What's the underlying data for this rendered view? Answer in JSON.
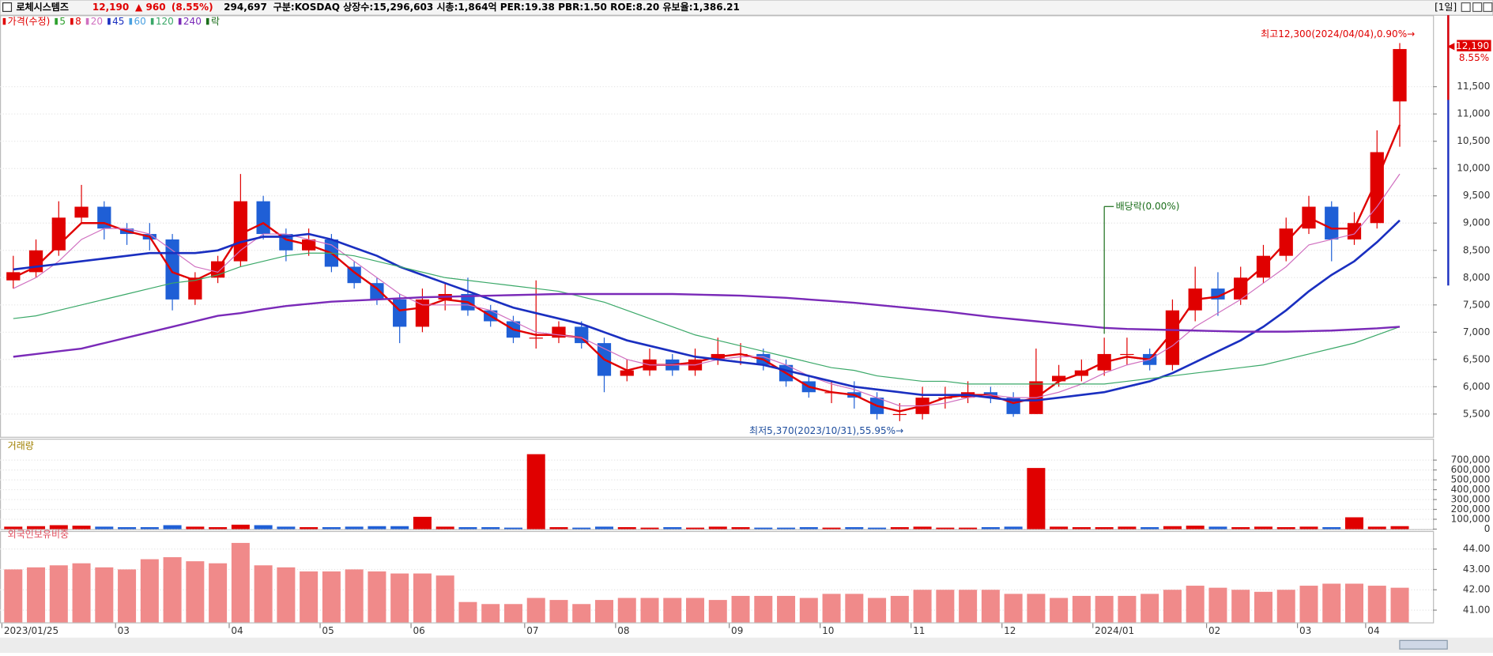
{
  "header": {
    "name": "로체시스템즈",
    "price": "12,190",
    "change": "▲ 960",
    "rate": "(8.55%)",
    "volume": "294,697",
    "info": "구분:KOSDAQ 상장수:15,296,603 시총:1,864억 PER:19.38 PBR:1.50 ROE:8.20 유보율:1,386.21",
    "period": "[1일]",
    "last_rate": "8.55%"
  },
  "chart_data": [
    {
      "type": "candlestick",
      "name": "가격(수정)",
      "up_color": "#e00000",
      "down_color": "#1f5fd6",
      "open": [
        7950,
        8100,
        8500,
        9100,
        9300,
        8900,
        8800,
        8700,
        7600,
        8000,
        8300,
        9400,
        8800,
        8500,
        8700,
        8200,
        7900,
        7600,
        7100,
        7600,
        7700,
        7400,
        7200,
        6900,
        6900,
        7100,
        6800,
        6200,
        6300,
        6500,
        6300,
        6500,
        6600,
        6600,
        6400,
        6100,
        5900,
        5900,
        5800,
        5500,
        5500,
        5800,
        5800,
        5900,
        5800,
        5500,
        6100,
        6200,
        6300,
        6600,
        6600,
        6400,
        7400,
        7800,
        7600,
        8000,
        8400,
        8900,
        9300,
        8700,
        9000,
        11230
      ],
      "high": [
        8400,
        8700,
        9400,
        9700,
        9400,
        9000,
        9000,
        8800,
        8100,
        8400,
        9900,
        9500,
        8900,
        8900,
        8800,
        8300,
        8000,
        7700,
        7800,
        7900,
        8000,
        7500,
        7300,
        7950,
        7200,
        7200,
        6900,
        6500,
        6700,
        6600,
        6700,
        6900,
        6800,
        6700,
        6500,
        6200,
        6100,
        6100,
        5900,
        5700,
        6000,
        6000,
        6100,
        6000,
        5900,
        6700,
        6400,
        6500,
        6900,
        6900,
        6700,
        7600,
        8200,
        8100,
        8200,
        8600,
        9100,
        9500,
        9400,
        9200,
        10700,
        12300
      ],
      "low": [
        7800,
        8000,
        8400,
        9000,
        8700,
        8600,
        8500,
        7400,
        7500,
        7900,
        8200,
        8700,
        8300,
        8400,
        8100,
        7800,
        7500,
        6800,
        7000,
        7400,
        7300,
        7100,
        6800,
        6700,
        6800,
        6700,
        5900,
        6100,
        6200,
        6200,
        6200,
        6400,
        6400,
        6300,
        6000,
        5800,
        5700,
        5600,
        5400,
        5370,
        5400,
        5600,
        5700,
        5700,
        5450,
        5500,
        6000,
        6100,
        6200,
        6400,
        6300,
        6300,
        7200,
        7300,
        7500,
        7900,
        8300,
        8800,
        8300,
        8600,
        8900,
        10400
      ],
      "close": [
        8100,
        8500,
        9100,
        9300,
        8900,
        8800,
        8700,
        7600,
        8000,
        8300,
        9400,
        8800,
        8500,
        8700,
        8200,
        7900,
        7600,
        7100,
        7600,
        7700,
        7400,
        7200,
        6900,
        6900,
        7100,
        6800,
        6200,
        6300,
        6500,
        6300,
        6500,
        6600,
        6600,
        6400,
        6100,
        5900,
        5900,
        5800,
        5500,
        5500,
        5800,
        5800,
        5900,
        5800,
        5500,
        6100,
        6200,
        6300,
        6600,
        6600,
        6400,
        7400,
        7800,
        7600,
        8000,
        8400,
        8900,
        9300,
        8700,
        9000,
        10300,
        12190
      ],
      "series": [
        {
          "color": "#e00000",
          "width": 2,
          "values": [
            8000,
            8200,
            8600,
            9000,
            9000,
            8850,
            8750,
            8100,
            7950,
            8150,
            8800,
            9000,
            8700,
            8600,
            8450,
            8100,
            7800,
            7400,
            7450,
            7600,
            7550,
            7300,
            7050,
            6950,
            6950,
            6900,
            6500,
            6300,
            6400,
            6400,
            6450,
            6550,
            6600,
            6500,
            6250,
            6000,
            5900,
            5850,
            5650,
            5550,
            5650,
            5800,
            5850,
            5850,
            5700,
            5800,
            6100,
            6250,
            6450,
            6550,
            6500,
            7000,
            7600,
            7650,
            7850,
            8200,
            8650,
            9100,
            8900,
            8900,
            9800,
            10800
          ]
        },
        {
          "color": "#d070c0",
          "width": 1,
          "values": [
            7800,
            8000,
            8300,
            8700,
            8900,
            8900,
            8800,
            8500,
            8200,
            8100,
            8500,
            8800,
            8800,
            8700,
            8600,
            8300,
            8000,
            7700,
            7500,
            7500,
            7500,
            7400,
            7200,
            7000,
            6950,
            6900,
            6700,
            6500,
            6400,
            6400,
            6400,
            6500,
            6550,
            6550,
            6400,
            6200,
            6050,
            5950,
            5800,
            5650,
            5650,
            5700,
            5800,
            5850,
            5800,
            5800,
            5900,
            6050,
            6250,
            6400,
            6500,
            6750,
            7100,
            7350,
            7600,
            7900,
            8200,
            8600,
            8700,
            8800,
            9300,
            9900
          ]
        },
        {
          "color": "#1a2fc0",
          "width": 2.2,
          "values": [
            8150,
            8200,
            8250,
            8300,
            8350,
            8400,
            8450,
            8450,
            8450,
            8500,
            8650,
            8750,
            8750,
            8800,
            8700,
            8550,
            8400,
            8200,
            8050,
            7900,
            7750,
            7600,
            7450,
            7350,
            7250,
            7150,
            7000,
            6850,
            6750,
            6650,
            6550,
            6500,
            6450,
            6400,
            6300,
            6200,
            6100,
            6000,
            5950,
            5900,
            5850,
            5850,
            5850,
            5800,
            5750,
            5750,
            5800,
            5850,
            5900,
            6000,
            6100,
            6250,
            6450,
            6650,
            6850,
            7100,
            7400,
            7750,
            8050,
            8300,
            8650,
            9050
          ]
        },
        {
          "color": "#3aa868",
          "width": 1,
          "values": [
            7250,
            7300,
            7400,
            7500,
            7600,
            7700,
            7800,
            7900,
            7950,
            8050,
            8200,
            8300,
            8400,
            8450,
            8450,
            8400,
            8300,
            8200,
            8100,
            8000,
            7950,
            7900,
            7850,
            7800,
            7750,
            7650,
            7550,
            7400,
            7250,
            7100,
            6950,
            6850,
            6750,
            6650,
            6550,
            6450,
            6350,
            6300,
            6200,
            6150,
            6100,
            6100,
            6050,
            6050,
            6050,
            6050,
            6050,
            6050,
            6050,
            6100,
            6150,
            6200,
            6250,
            6300,
            6350,
            6400,
            6500,
            6600,
            6700,
            6800,
            6950,
            7100
          ]
        },
        {
          "color": "#7a2ab8",
          "width": 2,
          "values": [
            6550,
            6600,
            6650,
            6700,
            6800,
            6900,
            7000,
            7100,
            7200,
            7300,
            7350,
            7420,
            7480,
            7520,
            7560,
            7580,
            7600,
            7620,
            7640,
            7650,
            7660,
            7670,
            7680,
            7690,
            7700,
            7700,
            7700,
            7700,
            7700,
            7700,
            7690,
            7680,
            7670,
            7650,
            7630,
            7600,
            7570,
            7540,
            7500,
            7460,
            7420,
            7380,
            7330,
            7280,
            7240,
            7200,
            7160,
            7120,
            7080,
            7060,
            7050,
            7040,
            7030,
            7020,
            7010,
            7010,
            7010,
            7020,
            7030,
            7050,
            7070,
            7100
          ]
        }
      ],
      "legend": [
        {
          "name": "5",
          "color": "#2ca02c"
        },
        {
          "name": "8",
          "color": "#e00000"
        },
        {
          "name": "20",
          "color": "#d070c0"
        },
        {
          "name": "45",
          "color": "#1a2fc0"
        },
        {
          "name": "60",
          "color": "#4aa0e0"
        },
        {
          "name": "120",
          "color": "#3aa868"
        },
        {
          "name": "240",
          "color": "#7a2ab8"
        },
        {
          "name": "락",
          "color": "#1b6e1b"
        }
      ],
      "ylim": [
        5100,
        12740
      ],
      "yticks": [
        {
          "value": 5500,
          "label": "5,500"
        },
        {
          "value": 6000,
          "label": "6,000"
        },
        {
          "value": 6500,
          "label": "6,500"
        },
        {
          "value": 7000,
          "label": "7,000"
        },
        {
          "value": 7500,
          "label": "7,500"
        },
        {
          "value": 8000,
          "label": "8,000"
        },
        {
          "value": 8500,
          "label": "8,500"
        },
        {
          "value": 9000,
          "label": "9,000"
        },
        {
          "value": 9500,
          "label": "9,500"
        },
        {
          "value": 10000,
          "label": "10,000"
        },
        {
          "value": 10500,
          "label": "10,500"
        },
        {
          "value": 11000,
          "label": "11,000"
        },
        {
          "value": 11500,
          "label": "11,500"
        }
      ],
      "annotations": {
        "high": "최고12,300(2024/04/04),0.90%→",
        "low": "최저5,370(2023/10/31),55.95%→",
        "dividend": "배당락(0.00%)"
      }
    },
    {
      "type": "bar",
      "title": "거래량",
      "values": [
        25000,
        30000,
        40000,
        35000,
        25000,
        20000,
        20000,
        40000,
        25000,
        20000,
        45000,
        40000,
        25000,
        20000,
        20000,
        25000,
        30000,
        30000,
        125000,
        25000,
        20000,
        20000,
        15000,
        760000,
        20000,
        15000,
        25000,
        20000,
        15000,
        20000,
        15000,
        25000,
        20000,
        15000,
        15000,
        20000,
        15000,
        20000,
        15000,
        20000,
        25000,
        15000,
        15000,
        20000,
        25000,
        620000,
        25000,
        20000,
        20000,
        25000,
        20000,
        30000,
        35000,
        25000,
        20000,
        25000,
        20000,
        25000,
        20000,
        120000,
        25000,
        30000
      ],
      "ylim": [
        0,
        830000
      ],
      "yticks": [
        0,
        {
          "value": 100000,
          "label": "100,000"
        },
        {
          "value": 200000,
          "label": "200,000"
        },
        {
          "value": 300000,
          "label": "300,000"
        },
        {
          "value": 400000,
          "label": "400,000"
        },
        {
          "value": 500000,
          "label": "500,000"
        },
        {
          "value": 600000,
          "label": "600,000"
        },
        {
          "value": 700000,
          "label": "700,000"
        }
      ]
    },
    {
      "type": "bar",
      "title": "외국인보유비중",
      "color": "#f08a8a",
      "categories": [
        "2023/01/25",
        null,
        null,
        null,
        null,
        "03",
        null,
        null,
        null,
        null,
        "04",
        null,
        null,
        null,
        "05",
        null,
        null,
        null,
        "06",
        null,
        null,
        null,
        null,
        "07",
        null,
        null,
        null,
        "08",
        null,
        null,
        null,
        null,
        "09",
        null,
        null,
        null,
        "10",
        null,
        null,
        null,
        "11",
        null,
        null,
        null,
        "12",
        null,
        null,
        null,
        "2024/01",
        null,
        null,
        null,
        null,
        "02",
        null,
        null,
        null,
        "03",
        null,
        null,
        "04",
        null
      ],
      "values": [
        43.0,
        43.1,
        43.2,
        43.3,
        43.1,
        43.0,
        43.5,
        43.6,
        43.4,
        43.3,
        44.3,
        43.2,
        43.1,
        42.9,
        42.9,
        43.0,
        42.9,
        42.8,
        42.8,
        42.7,
        41.4,
        41.3,
        41.3,
        41.6,
        41.5,
        41.3,
        41.5,
        41.6,
        41.6,
        41.6,
        41.6,
        41.5,
        41.7,
        41.7,
        41.7,
        41.6,
        41.8,
        41.8,
        41.6,
        41.7,
        42.0,
        42.0,
        42.0,
        42.0,
        41.8,
        41.8,
        41.6,
        41.7,
        41.7,
        41.7,
        41.8,
        42.0,
        42.2,
        42.1,
        42.0,
        41.9,
        42.0,
        42.2,
        42.3,
        42.3,
        42.2,
        42.1
      ],
      "ylim": [
        40.4,
        44.65
      ],
      "yticks": [
        {
          "value": 41,
          "label": "41.00"
        },
        {
          "value": 42,
          "label": "42.00"
        },
        {
          "value": 43,
          "label": "43.00"
        },
        {
          "value": 44,
          "label": "44.00"
        }
      ]
    }
  ]
}
